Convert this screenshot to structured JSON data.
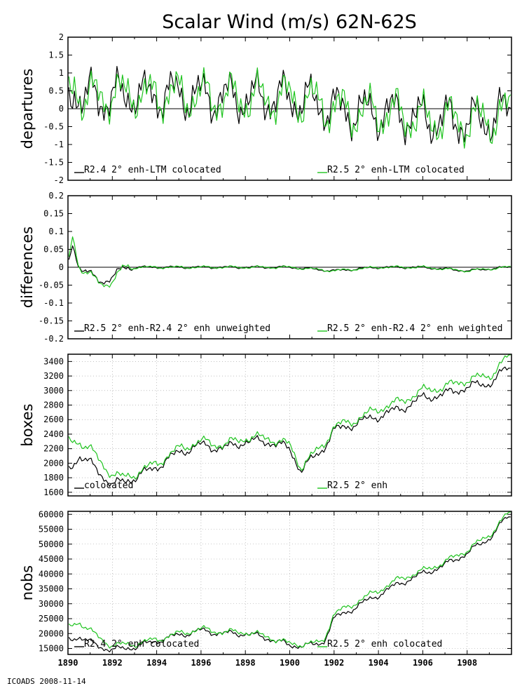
{
  "title": "Scalar Wind (m/s) 62N-62S",
  "footer": "ICOADS 2008-11-14",
  "colors": {
    "series1": "#000000",
    "series2": "#1fc41f",
    "zero_line": "#000000",
    "grid": "#9a9a9a"
  },
  "chart_data": [
    {
      "id": "departures",
      "type": "line",
      "ylabel": "departures",
      "xlim": [
        1890,
        1910
      ],
      "ylim": [
        -2,
        2
      ],
      "yticks": [
        -2,
        -1.5,
        -1,
        -0.5,
        0,
        0.5,
        1,
        1.5,
        2
      ],
      "ytick_labels": [
        "-2",
        "-1.5",
        "-1",
        "-0.5",
        "0",
        "0.5",
        "1",
        "1.5",
        "2"
      ],
      "zero_line": true,
      "grid": false,
      "series": [
        {
          "name": "R2.4 2° enh-LTM colocated",
          "color": "#000000",
          "keypoints": [
            [
              1890.0,
              0.1
            ],
            [
              1890.3,
              0.7
            ],
            [
              1890.6,
              0.3
            ],
            [
              1891.0,
              0.35
            ],
            [
              1891.5,
              0.25
            ],
            [
              1892.0,
              0.4
            ],
            [
              1892.5,
              0.3
            ],
            [
              1893.0,
              0.5
            ],
            [
              1893.5,
              0.3
            ],
            [
              1894.0,
              0.4
            ],
            [
              1895.0,
              0.4
            ],
            [
              1896.0,
              0.35
            ],
            [
              1897.0,
              0.3
            ],
            [
              1898.0,
              0.3
            ],
            [
              1899.0,
              0.3
            ],
            [
              1900.0,
              0.3
            ],
            [
              1901.0,
              0.2
            ],
            [
              1901.5,
              0.1
            ],
            [
              1902.0,
              0.0
            ],
            [
              1902.5,
              -0.05
            ],
            [
              1903.0,
              -0.1
            ],
            [
              1904.0,
              -0.1
            ],
            [
              1905.0,
              -0.15
            ],
            [
              1906.0,
              -0.3
            ],
            [
              1907.0,
              -0.3
            ],
            [
              1908.0,
              -0.35
            ],
            [
              1909.0,
              -0.3
            ],
            [
              1909.8,
              -0.05
            ]
          ]
        },
        {
          "name": "R2.5 2° enh-LTM colocated",
          "color": "#1fc41f",
          "keypoints": [
            [
              1890.0,
              0.15
            ],
            [
              1890.3,
              0.75
            ],
            [
              1890.6,
              0.35
            ],
            [
              1891.0,
              0.35
            ],
            [
              1891.5,
              0.3
            ],
            [
              1892.0,
              0.45
            ],
            [
              1892.5,
              0.35
            ],
            [
              1893.0,
              0.5
            ],
            [
              1893.5,
              0.3
            ],
            [
              1894.0,
              0.4
            ],
            [
              1895.0,
              0.4
            ],
            [
              1896.0,
              0.35
            ],
            [
              1897.0,
              0.3
            ],
            [
              1898.0,
              0.3
            ],
            [
              1899.0,
              0.3
            ],
            [
              1900.0,
              0.3
            ],
            [
              1901.0,
              0.2
            ],
            [
              1901.5,
              0.1
            ],
            [
              1902.0,
              0.0
            ],
            [
              1902.5,
              -0.05
            ],
            [
              1903.0,
              -0.1
            ],
            [
              1904.0,
              -0.1
            ],
            [
              1905.0,
              -0.15
            ],
            [
              1906.0,
              -0.3
            ],
            [
              1907.0,
              -0.3
            ],
            [
              1908.0,
              -0.35
            ],
            [
              1909.0,
              -0.3
            ],
            [
              1909.8,
              -0.1
            ]
          ]
        }
      ]
    },
    {
      "id": "differences",
      "type": "line",
      "ylabel": "differences",
      "xlim": [
        1890,
        1910
      ],
      "ylim": [
        -0.2,
        0.2
      ],
      "yticks": [
        -0.2,
        -0.15,
        -0.1,
        -0.05,
        0,
        0.05,
        0.1,
        0.15,
        0.2
      ],
      "ytick_labels": [
        "-0.2",
        "-0.15",
        "-0.1",
        "-0.05",
        "0",
        "0.05",
        "0.1",
        "0.15",
        "0.2"
      ],
      "zero_line": true,
      "grid": false,
      "series": [
        {
          "name": "R2.5 2° enh-R2.4 2° enh unweighted",
          "color": "#000000",
          "keypoints": [
            [
              1890.0,
              0.0
            ],
            [
              1890.2,
              0.07
            ],
            [
              1890.5,
              0.0
            ],
            [
              1891.0,
              -0.02
            ],
            [
              1891.5,
              -0.04
            ],
            [
              1892.0,
              -0.03
            ],
            [
              1892.5,
              0.0
            ],
            [
              1893.0,
              0.0
            ],
            [
              1894.0,
              0.0
            ],
            [
              1895.0,
              0.0
            ],
            [
              1896.0,
              0.0
            ],
            [
              1897.0,
              0.0
            ],
            [
              1898.0,
              0.0
            ],
            [
              1900.0,
              0.0
            ],
            [
              1902.0,
              -0.01
            ],
            [
              1904.0,
              0.0
            ],
            [
              1906.0,
              0.0
            ],
            [
              1908.0,
              -0.01
            ],
            [
              1909.8,
              0.0
            ]
          ]
        },
        {
          "name": "R2.5 2° enh-R2.4 2° enh weighted",
          "color": "#1fc41f",
          "keypoints": [
            [
              1890.0,
              0.0
            ],
            [
              1890.2,
              0.09
            ],
            [
              1890.5,
              0.0
            ],
            [
              1891.0,
              -0.02
            ],
            [
              1891.5,
              -0.05
            ],
            [
              1892.0,
              -0.04
            ],
            [
              1892.5,
              0.0
            ],
            [
              1893.0,
              0.0
            ],
            [
              1894.0,
              0.0
            ],
            [
              1895.0,
              0.0
            ],
            [
              1896.0,
              0.0
            ],
            [
              1897.0,
              0.0
            ],
            [
              1898.0,
              0.0
            ],
            [
              1900.0,
              0.0
            ],
            [
              1902.0,
              -0.01
            ],
            [
              1904.0,
              0.0
            ],
            [
              1906.0,
              0.0
            ],
            [
              1908.0,
              -0.01
            ],
            [
              1909.8,
              0.0
            ]
          ]
        }
      ]
    },
    {
      "id": "boxes",
      "type": "line",
      "ylabel": "boxes",
      "xlim": [
        1890,
        1910
      ],
      "ylim": [
        1550,
        3500
      ],
      "yticks": [
        1600,
        1800,
        2000,
        2200,
        2400,
        2600,
        2800,
        3000,
        3200,
        3400
      ],
      "ytick_labels": [
        "1600",
        "1800",
        "2000",
        "2200",
        "2400",
        "2600",
        "2800",
        "3000",
        "3200",
        "3400"
      ],
      "zero_line": false,
      "grid": true,
      "series": [
        {
          "name": "colocated",
          "color": "#000000",
          "keypoints": [
            [
              1890.0,
              1900
            ],
            [
              1890.5,
              2100
            ],
            [
              1891.0,
              2000
            ],
            [
              1891.5,
              1850
            ],
            [
              1892.0,
              1700
            ],
            [
              1892.5,
              1750
            ],
            [
              1893.0,
              1800
            ],
            [
              1894.0,
              1950
            ],
            [
              1895.0,
              2150
            ],
            [
              1896.0,
              2250
            ],
            [
              1897.0,
              2200
            ],
            [
              1898.0,
              2300
            ],
            [
              1899.0,
              2300
            ],
            [
              1900.0,
              2200
            ],
            [
              1900.5,
              1900
            ],
            [
              1901.0,
              2050
            ],
            [
              1901.5,
              2200
            ],
            [
              1902.0,
              2450
            ],
            [
              1903.0,
              2550
            ],
            [
              1904.0,
              2650
            ],
            [
              1905.0,
              2750
            ],
            [
              1906.0,
              2900
            ],
            [
              1907.0,
              2950
            ],
            [
              1908.0,
              3050
            ],
            [
              1909.0,
              3100
            ],
            [
              1909.8,
              3300
            ]
          ]
        },
        {
          "name": "R2.5 2° enh",
          "color": "#1fc41f",
          "keypoints": [
            [
              1890.0,
              2300
            ],
            [
              1890.5,
              2300
            ],
            [
              1891.0,
              2200
            ],
            [
              1891.5,
              2000
            ],
            [
              1892.0,
              1850
            ],
            [
              1892.5,
              1800
            ],
            [
              1893.0,
              1850
            ],
            [
              1894.0,
              2000
            ],
            [
              1895.0,
              2200
            ],
            [
              1896.0,
              2300
            ],
            [
              1897.0,
              2250
            ],
            [
              1898.0,
              2350
            ],
            [
              1899.0,
              2350
            ],
            [
              1900.0,
              2250
            ],
            [
              1900.5,
              1950
            ],
            [
              1901.0,
              2100
            ],
            [
              1901.5,
              2250
            ],
            [
              1902.0,
              2500
            ],
            [
              1903.0,
              2600
            ],
            [
              1904.0,
              2750
            ],
            [
              1905.0,
              2850
            ],
            [
              1906.0,
              3000
            ],
            [
              1907.0,
              3050
            ],
            [
              1908.0,
              3150
            ],
            [
              1909.0,
              3200
            ],
            [
              1909.8,
              3450
            ]
          ]
        }
      ]
    },
    {
      "id": "nobs",
      "type": "line",
      "ylabel": "nobs",
      "xlim": [
        1890,
        1910
      ],
      "ylim": [
        13000,
        61000
      ],
      "yticks": [
        15000,
        20000,
        25000,
        30000,
        35000,
        40000,
        45000,
        50000,
        55000,
        60000
      ],
      "ytick_labels": [
        "15000",
        "20000",
        "25000",
        "30000",
        "35000",
        "40000",
        "45000",
        "50000",
        "55000",
        "60000"
      ],
      "xticks": [
        1890,
        1892,
        1894,
        1896,
        1898,
        1900,
        1902,
        1904,
        1906,
        1908
      ],
      "xtick_labels": [
        "1890",
        "1892",
        "1894",
        "1896",
        "1898",
        "1900",
        "1902",
        "1904",
        "1906",
        "1908"
      ],
      "zero_line": false,
      "grid": true,
      "series": [
        {
          "name": "R2.4 2° enh colocated",
          "color": "#000000",
          "keypoints": [
            [
              1890.0,
              18000
            ],
            [
              1890.5,
              19000
            ],
            [
              1891.0,
              17000
            ],
            [
              1891.5,
              15500
            ],
            [
              1892.0,
              14500
            ],
            [
              1893.0,
              15500
            ],
            [
              1894.0,
              17500
            ],
            [
              1895.0,
              19500
            ],
            [
              1896.0,
              21000
            ],
            [
              1897.0,
              20000
            ],
            [
              1898.0,
              20000
            ],
            [
              1899.0,
              18500
            ],
            [
              1900.0,
              16000
            ],
            [
              1901.0,
              16000
            ],
            [
              1901.5,
              17000
            ],
            [
              1902.0,
              25000
            ],
            [
              1903.0,
              29000
            ],
            [
              1904.0,
              33000
            ],
            [
              1905.0,
              37000
            ],
            [
              1906.0,
              40000
            ],
            [
              1907.0,
              43000
            ],
            [
              1908.0,
              47000
            ],
            [
              1909.0,
              52000
            ],
            [
              1909.8,
              59000
            ]
          ]
        },
        {
          "name": "R2.5 2° enh colocated",
          "color": "#1fc41f",
          "keypoints": [
            [
              1890.0,
              22000
            ],
            [
              1890.5,
              24000
            ],
            [
              1891.0,
              21000
            ],
            [
              1891.5,
              18000
            ],
            [
              1892.0,
              16000
            ],
            [
              1893.0,
              16500
            ],
            [
              1894.0,
              18000
            ],
            [
              1895.0,
              20000
            ],
            [
              1896.0,
              21500
            ],
            [
              1897.0,
              20500
            ],
            [
              1898.0,
              20500
            ],
            [
              1899.0,
              19000
            ],
            [
              1900.0,
              16500
            ],
            [
              1901.0,
              16500
            ],
            [
              1901.5,
              17500
            ],
            [
              1902.0,
              26500
            ],
            [
              1903.0,
              30500
            ],
            [
              1904.0,
              34500
            ],
            [
              1905.0,
              38500
            ],
            [
              1906.0,
              41000
            ],
            [
              1907.0,
              44000
            ],
            [
              1908.0,
              48000
            ],
            [
              1909.0,
              53000
            ],
            [
              1909.8,
              60000
            ]
          ]
        }
      ]
    }
  ]
}
